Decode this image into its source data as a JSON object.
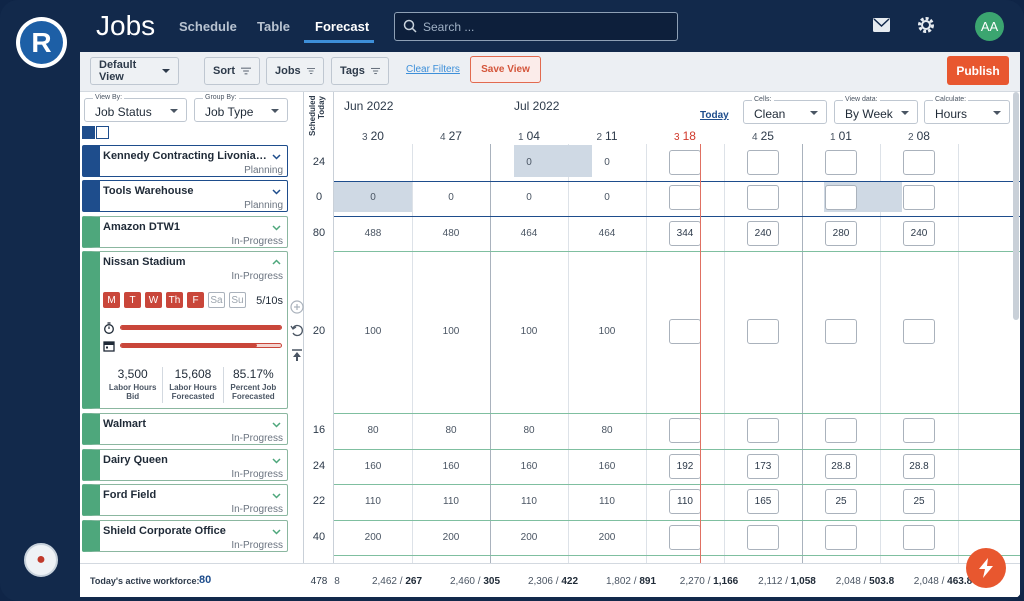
{
  "app": {
    "title": "Jobs",
    "logo_letter": "R",
    "avatar": "AA"
  },
  "nav": {
    "schedule": "Schedule",
    "table": "Table",
    "forecast": "Forecast"
  },
  "search": {
    "placeholder": "Search ..."
  },
  "toolbar": {
    "default_view": "Default View",
    "sort": "Sort",
    "jobs": "Jobs",
    "tags": "Tags",
    "clear_filters": "Clear Filters",
    "save_view": "Save View",
    "publish": "Publish"
  },
  "filters": {
    "view_by_label": "View By:",
    "view_by_value": "Job Status",
    "group_by_label": "Group By:",
    "group_by_value": "Job Type"
  },
  "grid_controls": {
    "today": "Today",
    "cells_label": "Cells:",
    "cells_value": "Clean",
    "view_data_label": "View data:",
    "view_data_value": "By Week",
    "calculate_label": "Calculate:",
    "calculate_value": "Hours"
  },
  "scheduled_today_header": "Scheduled Today",
  "months": [
    "Jun 2022",
    "Jul 2022"
  ],
  "weeks": [
    {
      "wk": "3",
      "day": "20"
    },
    {
      "wk": "4",
      "day": "27"
    },
    {
      "wk": "1",
      "day": "04"
    },
    {
      "wk": "2",
      "day": "11"
    },
    {
      "wk": "3",
      "day": "18"
    },
    {
      "wk": "4",
      "day": "25"
    },
    {
      "wk": "1",
      "day": "01"
    },
    {
      "wk": "2",
      "day": "08"
    }
  ],
  "jobs": [
    {
      "name": "Kennedy Contracting Livonia S...",
      "status": "Planning",
      "scheduled": "24",
      "cells": [
        "",
        "",
        "0",
        "0",
        "",
        "",
        "",
        ""
      ]
    },
    {
      "name": "Tools Warehouse",
      "status": "Planning",
      "scheduled": "0",
      "cells": [
        "0",
        "0",
        "0",
        "0",
        "",
        "",
        "",
        ""
      ]
    },
    {
      "name": "Amazon DTW1",
      "status": "In-Progress",
      "scheduled": "80",
      "cells": [
        "488",
        "480",
        "464",
        "464",
        "344",
        "240",
        "280",
        "240"
      ]
    },
    {
      "name": "Nissan Stadium",
      "status": "In-Progress",
      "scheduled": "20",
      "cells": [
        "100",
        "100",
        "100",
        "100",
        "",
        "",
        "",
        ""
      ]
    },
    {
      "name": "Walmart",
      "status": "In-Progress",
      "scheduled": "16",
      "cells": [
        "80",
        "80",
        "80",
        "80",
        "",
        "",
        "",
        ""
      ]
    },
    {
      "name": "Dairy Queen",
      "status": "In-Progress",
      "scheduled": "24",
      "cells": [
        "160",
        "160",
        "160",
        "160",
        "192",
        "173",
        "28.8",
        "28.8"
      ]
    },
    {
      "name": "Ford Field",
      "status": "In-Progress",
      "scheduled": "22",
      "cells": [
        "110",
        "110",
        "110",
        "110",
        "110",
        "165",
        "25",
        "25"
      ]
    },
    {
      "name": "Shield Corporate Office",
      "status": "In-Progress",
      "scheduled": "40",
      "cells": [
        "200",
        "200",
        "200",
        "200",
        "",
        "",
        "",
        ""
      ]
    }
  ],
  "nissan_detail": {
    "days": [
      {
        "label": "M",
        "on": true
      },
      {
        "label": "T",
        "on": true
      },
      {
        "label": "W",
        "on": true
      },
      {
        "label": "Th",
        "on": true
      },
      {
        "label": "F",
        "on": true
      },
      {
        "label": "Sa",
        "on": false
      },
      {
        "label": "Su",
        "on": false
      }
    ],
    "days_count": "5/10s",
    "timer_progress": 1.0,
    "calendar_progress": 0.85,
    "stats": [
      {
        "value": "3,500",
        "label": "Labor Hours Bid"
      },
      {
        "value": "15,608",
        "label": "Labor Hours Forecasted"
      },
      {
        "value": "85.17%",
        "label": "Percent Job Forecasted"
      }
    ]
  },
  "workforce": {
    "label": "Today's active workforce:",
    "value": "80"
  },
  "totals": {
    "scheduled_total": "478",
    "first_partial": "8",
    "weeks": [
      {
        "a": "2,462",
        "b": "267"
      },
      {
        "a": "2,460",
        "b": "305"
      },
      {
        "a": "2,306",
        "b": "422"
      },
      {
        "a": "1,802",
        "b": "891"
      },
      {
        "a": "2,270",
        "b": "1,166"
      },
      {
        "a": "2,112",
        "b": "1,058"
      },
      {
        "a": "2,048",
        "b": "503.8"
      },
      {
        "a": "2,048",
        "b": "463.8"
      }
    ]
  },
  "colors": {
    "accent": "#e8572f",
    "nav_bg": "#12294b",
    "in_progress": "#4ea77c",
    "planning": "#1e4d8c",
    "today": "#d0392b"
  }
}
